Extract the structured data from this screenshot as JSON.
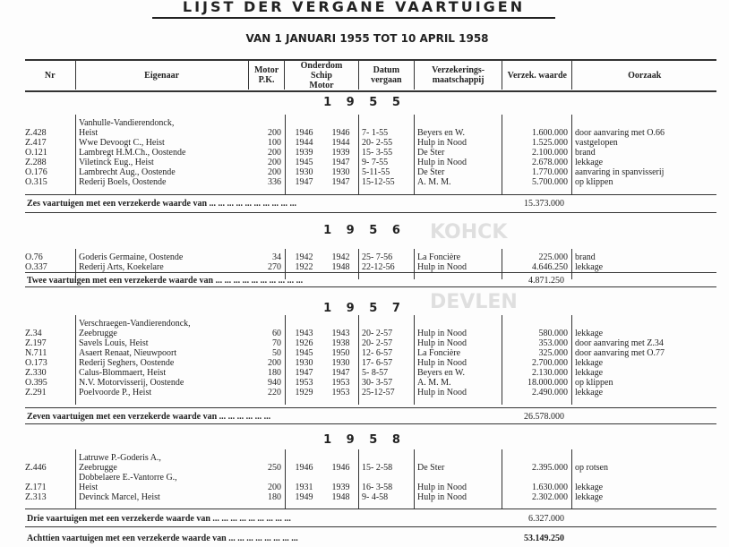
{
  "title": "LIJST DER VERGANE VAARTUIGEN",
  "subtitle": "VAN 1 JANUARI 1955 TOT 10 APRIL 1958",
  "columns": {
    "nr": "Nr",
    "owner": "Eigenaar",
    "motor_pk": "Motor P.K.",
    "age": "Onderdom",
    "age_ship": "Schip",
    "age_motor": "Motor",
    "date": "Datum vergaan",
    "insurer": "Verzekerings- maatschappij",
    "value": "Verzek. waarde",
    "cause": "Oorzaak"
  },
  "watermark": "KOHCK DEVLEN",
  "sections": [
    {
      "year": "1 9 5 5",
      "rows": [
        {
          "nr": "Z.428",
          "owner": [
            "Vanhulle-Vandierendonck,",
            "Heist"
          ],
          "pk": "200",
          "ship": "1946",
          "motor": "1946",
          "date": "7- 1-55",
          "insurer": "Beyers en W.",
          "value": "1.600.000",
          "cause": "door aanvaring met O.66"
        },
        {
          "nr": "Z.417",
          "owner": [
            "Wwe Devoogt C., Heist"
          ],
          "pk": "100",
          "ship": "1944",
          "motor": "1944",
          "date": "20- 2-55",
          "insurer": "Hulp in Nood",
          "value": "1.525.000",
          "cause": "vastgelopen"
        },
        {
          "nr": "O.121",
          "owner": [
            "Lambregt H.M.Ch., Oostende"
          ],
          "pk": "200",
          "ship": "1939",
          "motor": "1939",
          "date": "15- 3-55",
          "insurer": "De Ster",
          "value": "2.100.000",
          "cause": "brand"
        },
        {
          "nr": "Z.288",
          "owner": [
            "Viletinck Eug., Heist"
          ],
          "pk": "200",
          "ship": "1945",
          "motor": "1947",
          "date": "9- 7-55",
          "insurer": "Hulp in Nood",
          "value": "2.678.000",
          "cause": "lekkage"
        },
        {
          "nr": "O.176",
          "owner": [
            "Lambrecht Aug., Oostende"
          ],
          "pk": "200",
          "ship": "1930",
          "motor": "1930",
          "date": "5-11-55",
          "insurer": "De Ster",
          "value": "1.770.000",
          "cause": "aanvaring in spanvisserij"
        },
        {
          "nr": "O.315",
          "owner": [
            "Rederij Boels, Oostende"
          ],
          "pk": "336",
          "ship": "1947",
          "motor": "1947",
          "date": "15-12-55",
          "insurer": "A. M. M.",
          "value": "5.700.000",
          "cause": "op klippen"
        }
      ],
      "summary": "Zes vaartuigen met een verzekerde waarde van ... ... ... ... ... ... ... ... ... ...",
      "total": "15.373.000"
    },
    {
      "year": "1 9 5 6",
      "rows": [
        {
          "nr": "O.76",
          "owner": [
            "Goderis Germaine, Oostende"
          ],
          "pk": "34",
          "ship": "1942",
          "motor": "1942",
          "date": "25- 7-56",
          "insurer": "La Foncière",
          "value": "225.000",
          "cause": "brand"
        },
        {
          "nr": "O.337",
          "owner": [
            "Rederij Arts, Koekelare"
          ],
          "pk": "270",
          "ship": "1922",
          "motor": "1948",
          "date": "22-12-56",
          "insurer": "Hulp in Nood",
          "value": "4.646.250",
          "cause": "lekkage"
        }
      ],
      "summary": "Twee vaartuigen met een verzekerde waarde van ... ... ... ... ... ... ... ... ... ...",
      "total": "4.871.250"
    },
    {
      "year": "1 9 5 7",
      "rows": [
        {
          "nr": "Z.34",
          "owner": [
            "Verschraegen-Vandierendonck,",
            "Zeebrugge"
          ],
          "pk": "60",
          "ship": "1943",
          "motor": "1943",
          "date": "20- 2-57",
          "insurer": "Hulp in Nood",
          "value": "580.000",
          "cause": "lekkage"
        },
        {
          "nr": "Z.197",
          "owner": [
            "Savels Louis, Heist"
          ],
          "pk": "70",
          "ship": "1926",
          "motor": "1938",
          "date": "20- 2-57",
          "insurer": "Hulp in Nood",
          "value": "353.000",
          "cause": "door aanvaring met Z.34"
        },
        {
          "nr": "N.711",
          "owner": [
            "Asaert Renaat, Nieuwpoort"
          ],
          "pk": "50",
          "ship": "1945",
          "motor": "1950",
          "date": "12- 6-57",
          "insurer": "La Foncière",
          "value": "325.000",
          "cause": "door aanvaring met O.77"
        },
        {
          "nr": "O.173",
          "owner": [
            "Rederij Seghers, Oostende"
          ],
          "pk": "200",
          "ship": "1930",
          "motor": "1930",
          "date": "17- 6-57",
          "insurer": "Hulp in Nood",
          "value": "2.700.000",
          "cause": "lekkage"
        },
        {
          "nr": "Z.330",
          "owner": [
            "Calus-Blommaert, Heist"
          ],
          "pk": "180",
          "ship": "1947",
          "motor": "1947",
          "date": "5- 8-57",
          "insurer": "Beyers en W.",
          "value": "2.130.000",
          "cause": "lekkage"
        },
        {
          "nr": "O.395",
          "owner": [
            "N.V. Motorvisserij, Oostende"
          ],
          "pk": "940",
          "ship": "1953",
          "motor": "1953",
          "date": "30- 3-57",
          "insurer": "A. M. M.",
          "value": "18.000.000",
          "cause": "op klippen"
        },
        {
          "nr": "Z.291",
          "owner": [
            "Poelvoorde P., Heist"
          ],
          "pk": "220",
          "ship": "1929",
          "motor": "1953",
          "date": "25-12-57",
          "insurer": "Hulp in Nood",
          "value": "2.490.000",
          "cause": "lekkage"
        }
      ],
      "summary": "Zeven vaartuigen met een verzekerde waarde van ... ... ... ... ... ...",
      "total": "26.578.000"
    },
    {
      "year": "1 9 5 8",
      "rows": [
        {
          "nr": "Z.446",
          "owner": [
            "Latruwe P.-Goderis A.,",
            "Zeebrugge"
          ],
          "pk": "250",
          "ship": "1946",
          "motor": "1946",
          "date": "15- 2-58",
          "insurer": "De Ster",
          "value": "2.395.000",
          "cause": "op rotsen"
        },
        {
          "nr": "Z.171",
          "owner": [
            "Dobbelaere E.-Vantorre G.,",
            "Heist"
          ],
          "pk": "200",
          "ship": "1931",
          "motor": "1939",
          "date": "16- 3-58",
          "insurer": "Hulp in Nood",
          "value": "1.630.000",
          "cause": "lekkage"
        },
        {
          "nr": "Z.313",
          "owner": [
            "Devinck Marcel, Heist"
          ],
          "pk": "180",
          "ship": "1949",
          "motor": "1948",
          "date": "9- 4-58",
          "insurer": "Hulp in Nood",
          "value": "2.302.000",
          "cause": "lekkage"
        }
      ],
      "summary": "Drie vaartuigen met een verzekerde waarde van ... ... ... ... ... ... ... ... ...",
      "total": "6.327.000"
    }
  ],
  "grand_total": {
    "label": "Achttien vaartuigen met een verzekerde waarde van ... ... ... ... ... ... ... ...",
    "value": "53.149.250"
  }
}
